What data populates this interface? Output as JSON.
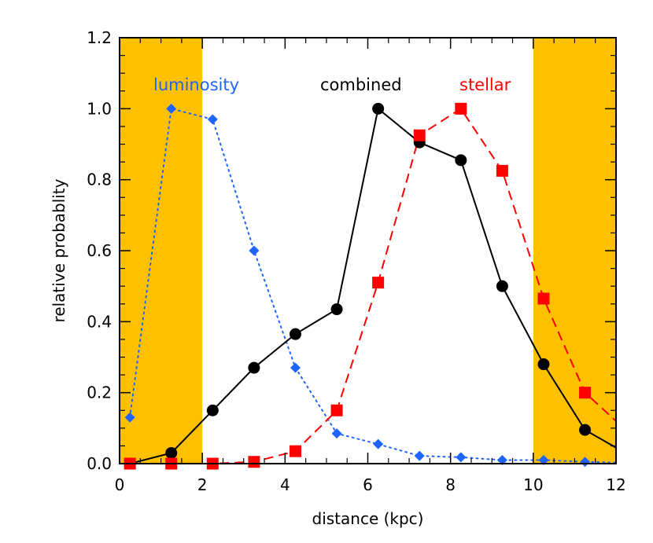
{
  "chart_data": {
    "type": "line",
    "xlabel": "distance (kpc)",
    "ylabel": "relative probablity",
    "xlim": [
      0,
      12
    ],
    "ylim": [
      0,
      1.2
    ],
    "xticks": [
      0,
      2,
      4,
      6,
      8,
      10,
      12
    ],
    "xtick_labels": [
      "0",
      "2",
      "4",
      "6",
      "8",
      "10",
      "12"
    ],
    "yticks": [
      0.0,
      0.2,
      0.4,
      0.6,
      0.8,
      1.0,
      1.2
    ],
    "ytick_labels": [
      "0.0",
      "0.2",
      "0.4",
      "0.6",
      "0.8",
      "1.0",
      "1.2"
    ],
    "grid": false,
    "shaded_regions": [
      {
        "x_from": 0,
        "x_to": 2,
        "color": "#FFC000"
      },
      {
        "x_from": 10,
        "x_to": 12,
        "color": "#FFC000"
      }
    ],
    "series": [
      {
        "name": "luminosity",
        "color": "#1E64FF",
        "line_style": "dotted",
        "marker": "diamond",
        "x": [
          0.25,
          1.25,
          2.25,
          3.25,
          4.25,
          5.25,
          6.25,
          7.25,
          8.25,
          9.25,
          10.25,
          11.25
        ],
        "y": [
          0.13,
          1.0,
          0.97,
          0.6,
          0.27,
          0.085,
          0.055,
          0.022,
          0.018,
          0.01,
          0.01,
          0.005
        ],
        "line_extend": {
          "x": 12.0,
          "y": 0.003
        }
      },
      {
        "name": "combined",
        "color": "#000000",
        "line_style": "solid",
        "marker": "circle",
        "x": [
          0.25,
          1.25,
          2.25,
          3.25,
          4.25,
          5.25,
          6.25,
          7.25,
          8.25,
          9.25,
          10.25,
          11.25
        ],
        "y": [
          0.0,
          0.03,
          0.15,
          0.27,
          0.365,
          0.435,
          1.0,
          0.905,
          0.855,
          0.5,
          0.28,
          0.095
        ],
        "line_extend": {
          "x": 12.0,
          "y": 0.045
        }
      },
      {
        "name": "stellar",
        "color": "#FF0000",
        "line_style": "dashed",
        "marker": "square",
        "x": [
          0.25,
          1.25,
          2.25,
          3.25,
          4.25,
          5.25,
          6.25,
          7.25,
          8.25,
          9.25,
          10.25,
          11.25
        ],
        "y": [
          0.0,
          0.0,
          0.0,
          0.005,
          0.035,
          0.15,
          0.51,
          0.925,
          1.0,
          0.825,
          0.465,
          0.2
        ],
        "line_extend": {
          "x": 12.0,
          "y": 0.12
        }
      }
    ]
  }
}
